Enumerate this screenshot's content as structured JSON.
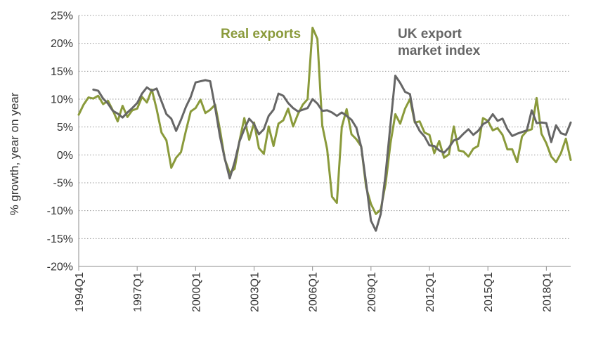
{
  "chart_data": {
    "type": "line",
    "ylabel": "% growth, year on year",
    "ylim": [
      -20,
      25
    ],
    "yticks": [
      -20,
      -15,
      -10,
      -5,
      0,
      5,
      10,
      15,
      20,
      25
    ],
    "ytick_labels": [
      "-20%",
      "-15%",
      "-10%",
      "-5%",
      "0%",
      "5%",
      "10%",
      "15%",
      "20%",
      "25%"
    ],
    "x_start": "1994Q1",
    "x_end": "2019Q1",
    "xticks": [
      "1994Q1",
      "1997Q1",
      "2000Q1",
      "2003Q1",
      "2006Q1",
      "2009Q1",
      "2012Q1",
      "2015Q1",
      "2018Q1"
    ],
    "grid": "horizontal dotted",
    "series": [
      {
        "name": "Real exports",
        "color": "#8a9a3b",
        "values": [
          [
            1994.0,
            7.2
          ],
          [
            1994.25,
            9.0
          ],
          [
            1994.5,
            10.3
          ],
          [
            1994.75,
            10.1
          ],
          [
            1995.0,
            10.6
          ],
          [
            1995.25,
            9.1
          ],
          [
            1995.5,
            9.7
          ],
          [
            1995.75,
            8.0
          ],
          [
            1996.0,
            6.0
          ],
          [
            1996.25,
            8.8
          ],
          [
            1996.5,
            6.8
          ],
          [
            1996.75,
            8.0
          ],
          [
            1997.0,
            8.3
          ],
          [
            1997.25,
            10.4
          ],
          [
            1997.5,
            9.4
          ],
          [
            1997.75,
            11.7
          ],
          [
            1998.0,
            8.2
          ],
          [
            1998.25,
            4.0
          ],
          [
            1998.5,
            2.6
          ],
          [
            1998.75,
            -2.3
          ],
          [
            1999.0,
            -0.5
          ],
          [
            1999.25,
            0.5
          ],
          [
            1999.5,
            4.3
          ],
          [
            1999.75,
            7.8
          ],
          [
            2000.0,
            8.4
          ],
          [
            2000.25,
            9.9
          ],
          [
            2000.5,
            7.5
          ],
          [
            2000.75,
            8.1
          ],
          [
            2001.0,
            9.0
          ],
          [
            2001.25,
            4.5
          ],
          [
            2001.5,
            -0.8
          ],
          [
            2001.75,
            -3.2
          ],
          [
            2002.0,
            -2.5
          ],
          [
            2002.25,
            2.5
          ],
          [
            2002.5,
            6.6
          ],
          [
            2002.75,
            2.7
          ],
          [
            2003.0,
            5.8
          ],
          [
            2003.25,
            1.2
          ],
          [
            2003.5,
            0.2
          ],
          [
            2003.75,
            5.1
          ],
          [
            2004.0,
            1.6
          ],
          [
            2004.25,
            5.6
          ],
          [
            2004.5,
            6.2
          ],
          [
            2004.75,
            8.3
          ],
          [
            2005.0,
            5.1
          ],
          [
            2005.25,
            7.3
          ],
          [
            2005.5,
            9.0
          ],
          [
            2005.75,
            10.0
          ],
          [
            2006.0,
            22.8
          ],
          [
            2006.25,
            20.8
          ],
          [
            2006.5,
            5.3
          ],
          [
            2006.75,
            1.0
          ],
          [
            2007.0,
            -7.5
          ],
          [
            2007.25,
            -8.6
          ],
          [
            2007.5,
            5.0
          ],
          [
            2007.75,
            8.2
          ],
          [
            2008.0,
            3.7
          ],
          [
            2008.25,
            2.8
          ],
          [
            2008.5,
            1.5
          ],
          [
            2008.75,
            -5.8
          ],
          [
            2009.0,
            -8.8
          ],
          [
            2009.25,
            -10.6
          ],
          [
            2009.5,
            -9.8
          ],
          [
            2009.75,
            -5.2
          ],
          [
            2010.0,
            2.1
          ],
          [
            2010.25,
            7.3
          ],
          [
            2010.5,
            5.6
          ],
          [
            2010.75,
            8.3
          ],
          [
            2011.0,
            10.0
          ],
          [
            2011.25,
            5.8
          ],
          [
            2011.5,
            6.0
          ],
          [
            2011.75,
            4.0
          ],
          [
            2012.0,
            3.6
          ],
          [
            2012.25,
            0.3
          ],
          [
            2012.5,
            2.5
          ],
          [
            2012.75,
            -0.5
          ],
          [
            2013.0,
            0.1
          ],
          [
            2013.25,
            5.1
          ],
          [
            2013.5,
            0.8
          ],
          [
            2013.75,
            0.6
          ],
          [
            2014.0,
            -0.3
          ],
          [
            2014.25,
            1.1
          ],
          [
            2014.5,
            1.6
          ],
          [
            2014.75,
            6.6
          ],
          [
            2015.0,
            6.1
          ],
          [
            2015.25,
            4.4
          ],
          [
            2015.5,
            4.8
          ],
          [
            2015.75,
            3.6
          ],
          [
            2016.0,
            1.0
          ],
          [
            2016.25,
            1.0
          ],
          [
            2016.5,
            -1.3
          ],
          [
            2016.75,
            3.3
          ],
          [
            2017.0,
            4.3
          ],
          [
            2017.25,
            4.6
          ],
          [
            2017.5,
            10.2
          ],
          [
            2017.75,
            3.8
          ],
          [
            2018.0,
            2.1
          ],
          [
            2018.25,
            -0.3
          ],
          [
            2018.5,
            -1.3
          ],
          [
            2018.75,
            0.3
          ],
          [
            2019.0,
            2.9
          ],
          [
            2019.25,
            -0.9
          ]
        ]
      },
      {
        "name": "UK export market index",
        "color": "#666666",
        "values": [
          [
            1994.75,
            11.7
          ],
          [
            1995.0,
            11.5
          ],
          [
            1995.25,
            10.1
          ],
          [
            1995.5,
            9.2
          ],
          [
            1995.75,
            7.9
          ],
          [
            1996.0,
            7.4
          ],
          [
            1996.25,
            6.7
          ],
          [
            1996.5,
            7.6
          ],
          [
            1996.75,
            8.4
          ],
          [
            1997.0,
            9.3
          ],
          [
            1997.25,
            11.0
          ],
          [
            1997.5,
            12.1
          ],
          [
            1997.75,
            11.5
          ],
          [
            1998.0,
            11.9
          ],
          [
            1998.25,
            9.6
          ],
          [
            1998.5,
            7.3
          ],
          [
            1998.75,
            6.5
          ],
          [
            1999.0,
            4.3
          ],
          [
            1999.25,
            6.3
          ],
          [
            1999.5,
            8.6
          ],
          [
            1999.75,
            10.4
          ],
          [
            2000.0,
            13.0
          ],
          [
            2000.25,
            13.2
          ],
          [
            2000.5,
            13.4
          ],
          [
            2000.75,
            13.2
          ],
          [
            2001.0,
            8.5
          ],
          [
            2001.25,
            3.3
          ],
          [
            2001.5,
            -0.7
          ],
          [
            2001.75,
            -4.2
          ],
          [
            2002.0,
            -1.3
          ],
          [
            2002.25,
            2.4
          ],
          [
            2002.5,
            4.6
          ],
          [
            2002.75,
            6.5
          ],
          [
            2003.0,
            5.5
          ],
          [
            2003.25,
            3.7
          ],
          [
            2003.5,
            4.6
          ],
          [
            2003.75,
            7.0
          ],
          [
            2004.0,
            8.1
          ],
          [
            2004.25,
            11.0
          ],
          [
            2004.5,
            10.6
          ],
          [
            2004.75,
            9.3
          ],
          [
            2005.0,
            8.4
          ],
          [
            2005.25,
            7.8
          ],
          [
            2005.5,
            8.1
          ],
          [
            2005.75,
            8.4
          ],
          [
            2006.0,
            10.0
          ],
          [
            2006.25,
            9.2
          ],
          [
            2006.5,
            7.9
          ],
          [
            2006.75,
            8.0
          ],
          [
            2007.0,
            7.6
          ],
          [
            2007.25,
            7.0
          ],
          [
            2007.5,
            7.6
          ],
          [
            2007.75,
            7.0
          ],
          [
            2008.0,
            6.3
          ],
          [
            2008.25,
            4.9
          ],
          [
            2008.5,
            1.4
          ],
          [
            2008.75,
            -5.0
          ],
          [
            2009.0,
            -11.8
          ],
          [
            2009.25,
            -13.6
          ],
          [
            2009.5,
            -10.6
          ],
          [
            2009.75,
            -3.5
          ],
          [
            2010.0,
            5.5
          ],
          [
            2010.25,
            14.2
          ],
          [
            2010.5,
            12.9
          ],
          [
            2010.75,
            11.3
          ],
          [
            2011.0,
            10.9
          ],
          [
            2011.25,
            6.0
          ],
          [
            2011.5,
            4.3
          ],
          [
            2011.75,
            3.3
          ],
          [
            2012.0,
            1.7
          ],
          [
            2012.25,
            1.6
          ],
          [
            2012.5,
            0.8
          ],
          [
            2012.75,
            0.4
          ],
          [
            2013.0,
            1.3
          ],
          [
            2013.25,
            2.6
          ],
          [
            2013.5,
            2.9
          ],
          [
            2013.75,
            3.8
          ],
          [
            2014.0,
            4.6
          ],
          [
            2014.25,
            3.6
          ],
          [
            2014.5,
            4.3
          ],
          [
            2014.75,
            5.5
          ],
          [
            2015.0,
            6.0
          ],
          [
            2015.25,
            7.3
          ],
          [
            2015.5,
            6.1
          ],
          [
            2015.75,
            6.5
          ],
          [
            2016.0,
            4.6
          ],
          [
            2016.25,
            3.4
          ],
          [
            2016.5,
            3.8
          ],
          [
            2016.75,
            4.1
          ],
          [
            2017.0,
            4.4
          ],
          [
            2017.25,
            8.0
          ],
          [
            2017.5,
            5.7
          ],
          [
            2017.75,
            5.8
          ],
          [
            2018.0,
            5.7
          ],
          [
            2018.25,
            2.3
          ],
          [
            2018.5,
            5.3
          ],
          [
            2018.75,
            3.9
          ],
          [
            2019.0,
            3.6
          ],
          [
            2019.25,
            5.8
          ]
        ]
      }
    ],
    "legend": [
      {
        "lines": [
          "Real exports"
        ],
        "color": "#8a9a3b"
      },
      {
        "lines": [
          "UK export",
          "market index"
        ],
        "color": "#666666"
      }
    ]
  }
}
